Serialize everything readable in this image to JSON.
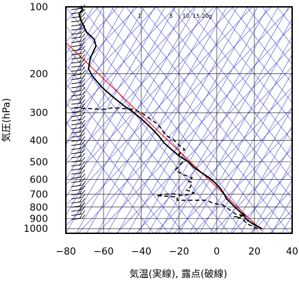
{
  "chart_data": {
    "type": "line",
    "title": "",
    "xlabel": "気温(実線), 露点(破線)",
    "ylabel": "気圧(hPa)",
    "x_axis": {
      "min": -80,
      "max": 40,
      "ticks": [
        -80,
        -60,
        -40,
        -20,
        0,
        20,
        40
      ],
      "tick_labels": [
        "−80",
        "−60",
        "−40",
        "−20",
        "0",
        "20",
        "40"
      ]
    },
    "y_axis": {
      "scale": "log",
      "min": 100,
      "max": 1050,
      "ticks": [
        100,
        200,
        300,
        400,
        500,
        600,
        700,
        800,
        900,
        1000
      ],
      "tick_labels": [
        "100",
        "200",
        "300",
        "400",
        "500",
        "600",
        "700",
        "800",
        "900",
        "1000"
      ]
    },
    "mixing_ratio_labels": [
      "1",
      "5",
      "10",
      "15",
      "20g"
    ],
    "colors": {
      "temperature": "#000000",
      "dewpoint": "#000000",
      "reference": "#e8141e",
      "background_lines": "#3f3fd8",
      "grid": "#000000"
    },
    "series": [
      {
        "style": "solid",
        "points": [
          [
            24,
            1000
          ],
          [
            20,
            960
          ],
          [
            17,
            925
          ],
          [
            15,
            900
          ],
          [
            15,
            880
          ],
          [
            14,
            860
          ],
          [
            13,
            850
          ],
          [
            11,
            820
          ],
          [
            9,
            790
          ],
          [
            7,
            760
          ],
          [
            5,
            730
          ],
          [
            4,
            700
          ],
          [
            2,
            660
          ],
          [
            -1,
            620
          ],
          [
            -4,
            590
          ],
          [
            -8,
            560
          ],
          [
            -12,
            530
          ],
          [
            -15,
            500
          ],
          [
            -20,
            470
          ],
          [
            -24,
            440
          ],
          [
            -28,
            410
          ],
          [
            -31,
            380
          ],
          [
            -35,
            350
          ],
          [
            -40,
            320
          ],
          [
            -44,
            300
          ],
          [
            -49,
            280
          ],
          [
            -55,
            255
          ],
          [
            -61,
            230
          ],
          [
            -66,
            205
          ],
          [
            -68,
            190
          ],
          [
            -67,
            170
          ],
          [
            -64,
            150
          ],
          [
            -65,
            140
          ],
          [
            -69,
            130
          ],
          [
            -72,
            115
          ],
          [
            -73,
            108
          ],
          [
            -71,
            103
          ],
          [
            -72,
            100
          ]
        ]
      },
      {
        "style": "dashed",
        "points": [
          [
            22,
            1000
          ],
          [
            17,
            960
          ],
          [
            15,
            930
          ],
          [
            14,
            910
          ],
          [
            13,
            895
          ],
          [
            9,
            885
          ],
          [
            15,
            875
          ],
          [
            10,
            860
          ],
          [
            3,
            780
          ],
          [
            -2,
            770
          ],
          [
            -5,
            745
          ],
          [
            -21,
            745
          ],
          [
            -21,
            720
          ],
          [
            -32,
            710
          ],
          [
            -24,
            695
          ],
          [
            -18,
            710
          ],
          [
            -14,
            700
          ],
          [
            -12,
            690
          ],
          [
            -16,
            670
          ],
          [
            -14,
            650
          ],
          [
            -13,
            620
          ],
          [
            -15,
            610
          ],
          [
            -13,
            590
          ],
          [
            -18,
            570
          ],
          [
            -22,
            545
          ],
          [
            -20,
            520
          ],
          [
            -17,
            490
          ],
          [
            -20,
            460
          ],
          [
            -17,
            440
          ],
          [
            -20,
            420
          ],
          [
            -22,
            405
          ],
          [
            -23,
            395
          ],
          [
            -27,
            380
          ],
          [
            -31,
            340
          ],
          [
            -40,
            300
          ],
          [
            -44,
            290
          ],
          [
            -55,
            285
          ],
          [
            -60,
            290
          ],
          [
            -76,
            285
          ]
        ]
      },
      {
        "style": "red",
        "points": [
          [
            24,
            1020
          ],
          [
            -80,
            145
          ]
        ]
      }
    ],
    "wind_barbs": "left margin, 100–925 hPa",
    "grid": true,
    "background": "isotherms, dry adiabats and mixing-ratio lines (blue)"
  }
}
